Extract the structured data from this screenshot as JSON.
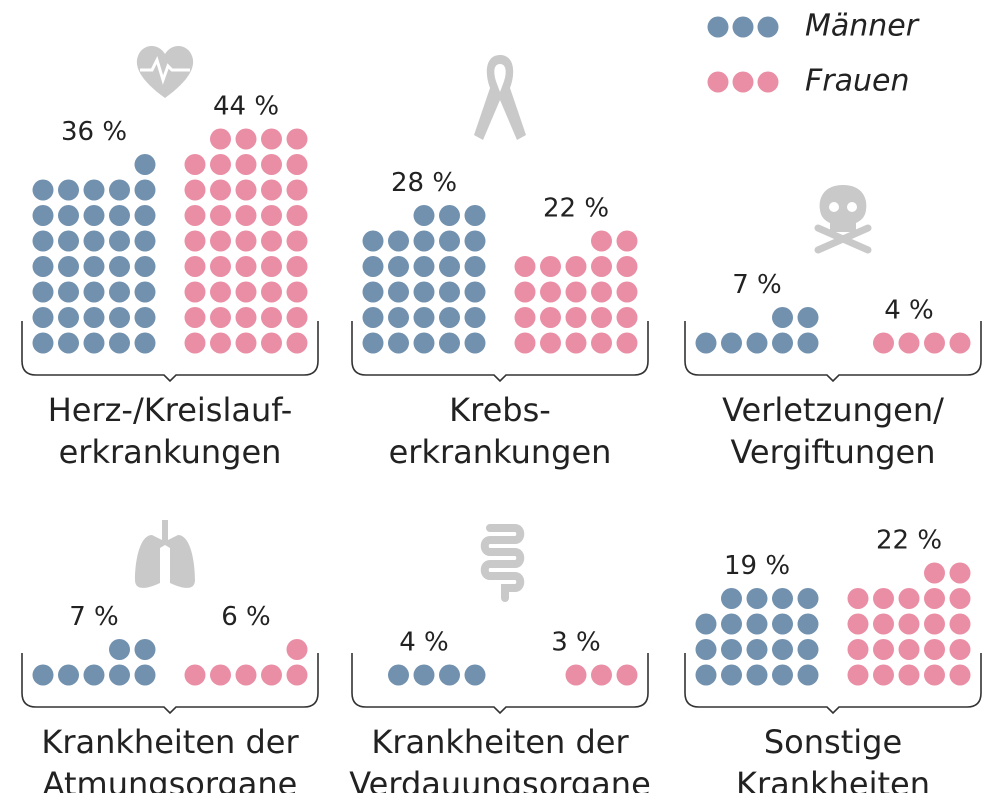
{
  "chart_data": {
    "type": "dot-grid",
    "categories": [
      "Herz-/Kreislauf-\nerkrankungen",
      "Krebs-\nerkrankungen",
      "Verletzungen/\nVergiftungen",
      "Krankheiten der\nAtmungsorgane",
      "Krankheiten der\nVerdauungsorgane",
      "Sonstige\nKrankheiten"
    ],
    "series": [
      {
        "name": "Männer",
        "color": "#7191ae",
        "values": [
          36,
          28,
          7,
          7,
          4,
          19
        ],
        "value_labels": [
          "36 %",
          "28 %",
          "7 %",
          "7 %",
          "4 %",
          "19 %"
        ]
      },
      {
        "name": "Frauen",
        "color": "#ea8ea5",
        "values": [
          44,
          22,
          4,
          6,
          3,
          22
        ],
        "value_labels": [
          "44 %",
          "22 %",
          "4 %",
          "6 %",
          "3 %",
          "22 %"
        ]
      }
    ],
    "legend": "top-right"
  }
}
